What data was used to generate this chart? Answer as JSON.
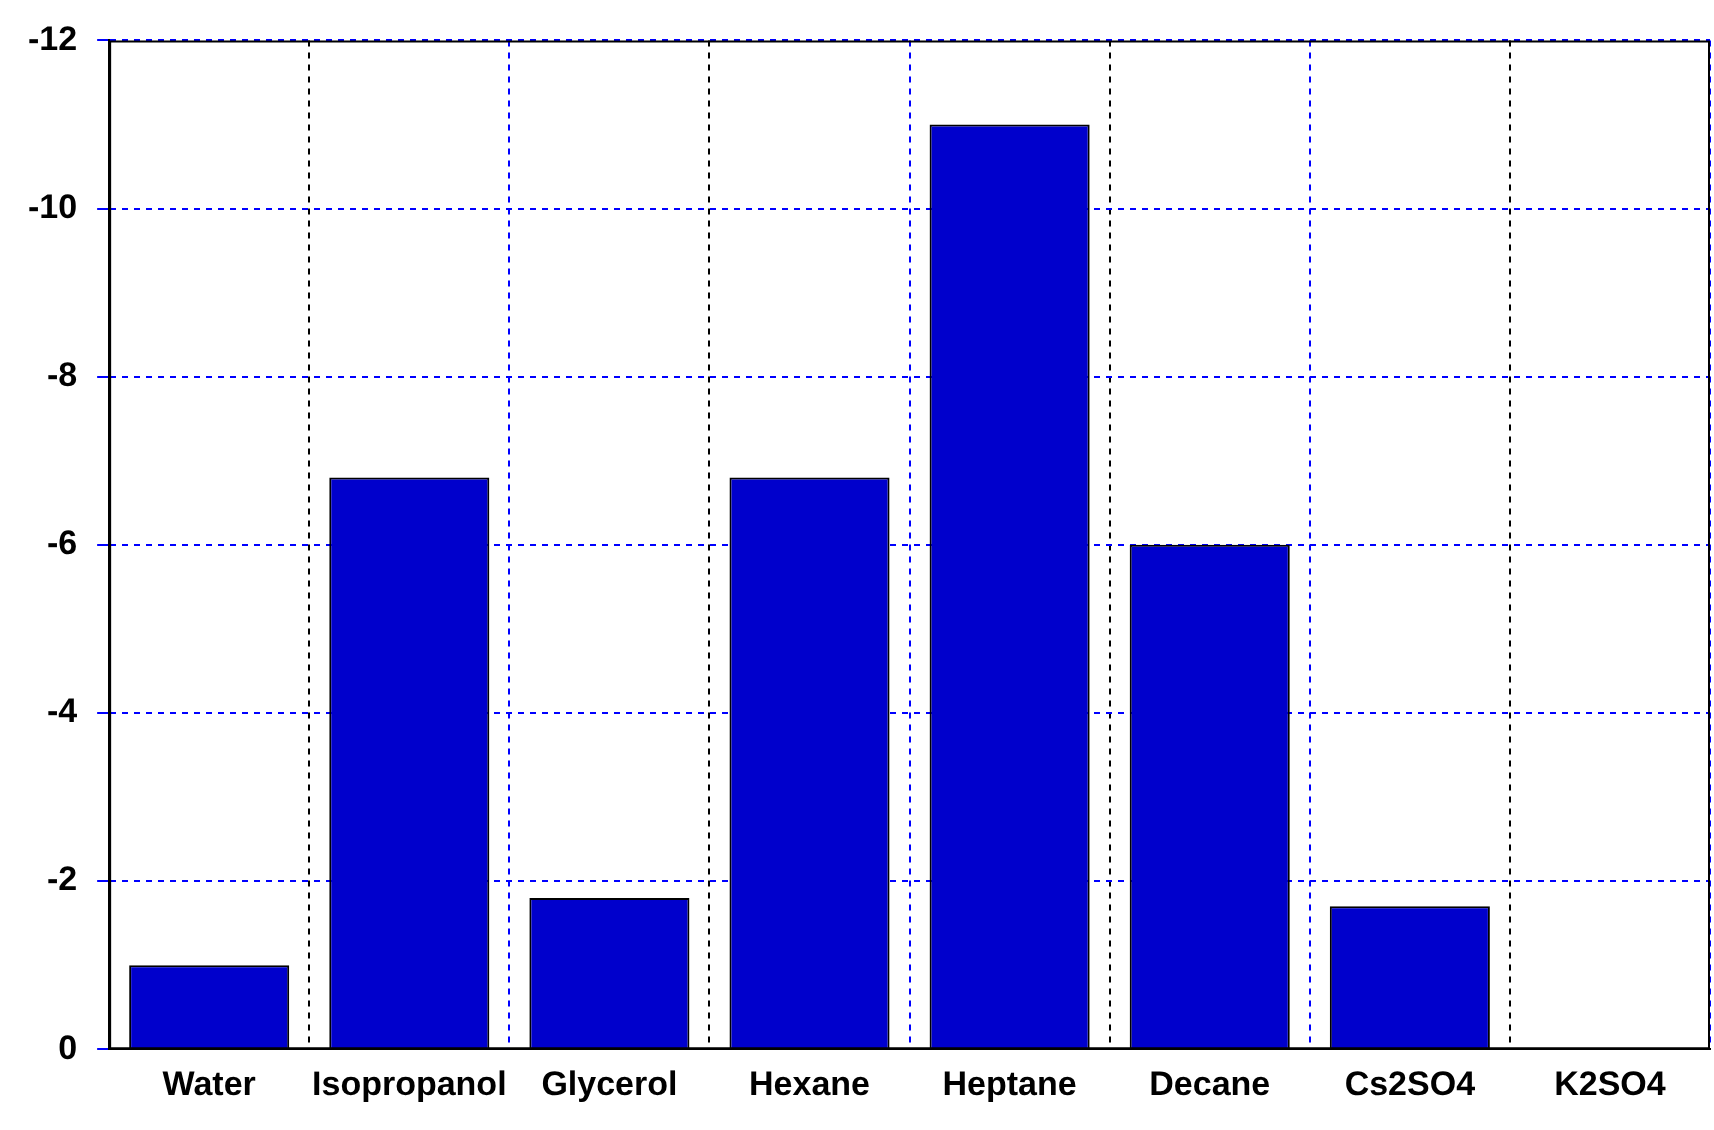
{
  "chart_data": {
    "type": "bar",
    "categories": [
      "Water",
      "Isopropanol",
      "Glycerol",
      "Hexane",
      "Heptane",
      "Decane",
      "Cs2SO4",
      "K2SO4"
    ],
    "values": [
      -1,
      -6.8,
      -1.8,
      -6.8,
      -11,
      -6,
      -1.7,
      0
    ],
    "color": "#0000cc",
    "ylim": [
      0,
      -12
    ],
    "yticks": [
      0,
      -2,
      -4,
      -6,
      -8,
      -10,
      -12
    ],
    "grid": true
  }
}
